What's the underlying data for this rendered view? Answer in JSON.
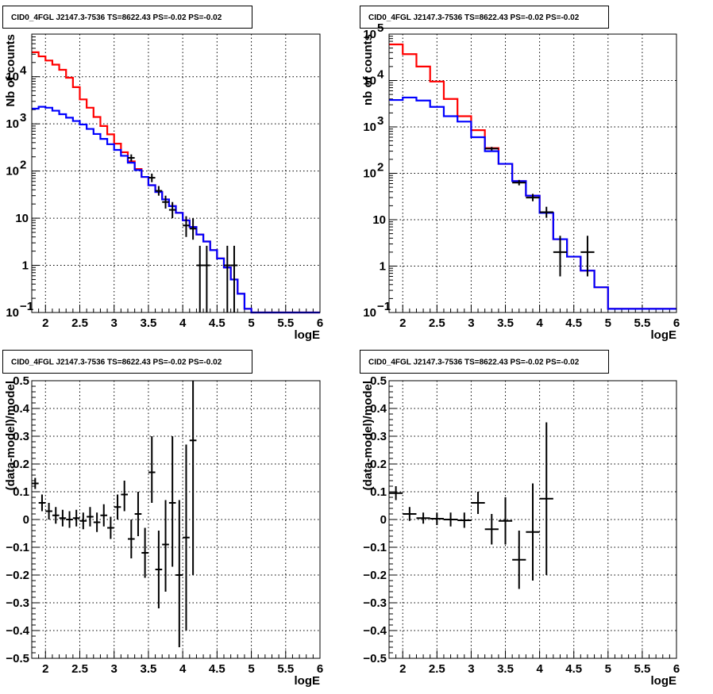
{
  "chart_data": [
    {
      "type": "line",
      "panel": "top-left",
      "title": "CID0_4FGL J2147.3-7536 TS=8622.43 PS=-0.02 PS=-0.02",
      "xlabel": "logE",
      "ylabel": "Nb of counts",
      "xlim": [
        1.8,
        6
      ],
      "ylim": [
        0.1,
        80000
      ],
      "yscale": "log",
      "grid": true,
      "x_ticks": [
        "2",
        "2.5",
        "3",
        "3.5",
        "4",
        "4.5",
        "5",
        "5.5",
        "6"
      ],
      "y_ticks": [
        {
          "v": 0.1,
          "base": "10",
          "exp": "−1"
        },
        {
          "v": 1,
          "label": "1"
        },
        {
          "v": 10,
          "label": "10"
        },
        {
          "v": 100,
          "base": "10",
          "exp": "2"
        },
        {
          "v": 1000,
          "base": "10",
          "exp": "3"
        },
        {
          "v": 10000,
          "base": "10",
          "exp": "4"
        }
      ],
      "series": [
        {
          "color": "#ff0000",
          "bin_edges": [
            1.8,
            1.9,
            2.0,
            2.1,
            2.2,
            2.3,
            2.4,
            2.5,
            2.6,
            2.7,
            2.8,
            2.9,
            3.0,
            3.1,
            3.2,
            3.3,
            3.4,
            3.5,
            3.6,
            3.7,
            3.8,
            3.9,
            4.0,
            4.1,
            4.2,
            4.3,
            4.4,
            4.5,
            4.6,
            4.7,
            4.8,
            4.9,
            5.0,
            6.0
          ],
          "values": [
            33000,
            27000,
            22000,
            18000,
            14000,
            9500,
            6000,
            3300,
            2200,
            1400,
            900,
            600,
            380,
            250,
            160,
            110,
            75,
            50,
            36,
            25,
            18,
            13,
            9,
            6.5,
            4.5,
            3.2,
            2.1,
            1.4,
            0.9,
            0.5,
            0.25,
            0.12,
            0.1
          ]
        },
        {
          "color": "#0000ff",
          "bin_edges": [
            1.8,
            1.9,
            2.0,
            2.1,
            2.2,
            2.3,
            2.4,
            2.5,
            2.6,
            2.7,
            2.8,
            2.9,
            3.0,
            3.1,
            3.2,
            3.3,
            3.4,
            3.5,
            3.6,
            3.7,
            3.8,
            3.9,
            4.0,
            4.1,
            4.2,
            4.3,
            4.4,
            4.5,
            4.6,
            4.7,
            4.8,
            4.9,
            5.0,
            6.0
          ],
          "values": [
            2100,
            2300,
            2200,
            1900,
            1600,
            1350,
            1150,
            970,
            780,
            610,
            480,
            370,
            280,
            210,
            150,
            105,
            75,
            50,
            36,
            25,
            18,
            13,
            9,
            6.5,
            4.5,
            3.2,
            2.1,
            1.4,
            0.9,
            0.5,
            0.25,
            0.12,
            0.1
          ]
        }
      ],
      "points": [
        {
          "x": 3.25,
          "y": 190,
          "ylo": 160,
          "yhi": 225,
          "xw": 0.05
        },
        {
          "x": 3.55,
          "y": 72,
          "ylo": 58,
          "yhi": 88,
          "xw": 0.05
        },
        {
          "x": 3.65,
          "y": 38,
          "ylo": 30,
          "yhi": 48,
          "xw": 0.05
        },
        {
          "x": 3.75,
          "y": 22,
          "ylo": 16,
          "yhi": 30,
          "xw": 0.05
        },
        {
          "x": 3.85,
          "y": 15,
          "ylo": 10,
          "yhi": 22,
          "xw": 0.05
        },
        {
          "x": 4.05,
          "y": 7,
          "ylo": 4,
          "yhi": 11,
          "xw": 0.05
        },
        {
          "x": 4.15,
          "y": 6,
          "ylo": 3.5,
          "yhi": 10,
          "xw": 0.05
        },
        {
          "x": 4.25,
          "y": 1,
          "ylo": 0.1,
          "yhi": 2.6,
          "xw": 0.05
        },
        {
          "x": 4.35,
          "y": 1,
          "ylo": 0.1,
          "yhi": 2.6,
          "xw": 0.05
        },
        {
          "x": 4.65,
          "y": 1,
          "ylo": 0.1,
          "yhi": 2.6,
          "xw": 0.05
        },
        {
          "x": 4.75,
          "y": 1,
          "ylo": 0.1,
          "yhi": 2.6,
          "xw": 0.05
        }
      ]
    },
    {
      "type": "line",
      "panel": "top-right",
      "title": "CID0_4FGL J2147.3-7536 TS=8622.43 PS=-0.02 PS=-0.02",
      "xlabel": "logE",
      "ylabel": "nb of counts",
      "xlim": [
        1.8,
        6
      ],
      "ylim": [
        0.1,
        100000
      ],
      "yscale": "log",
      "grid": true,
      "x_ticks": [
        "2",
        "2.5",
        "3",
        "3.5",
        "4",
        "4.5",
        "5",
        "5.5",
        "6"
      ],
      "y_ticks": [
        {
          "v": 0.1,
          "base": "10",
          "exp": "−1"
        },
        {
          "v": 1,
          "label": "1"
        },
        {
          "v": 10,
          "label": "10"
        },
        {
          "v": 100,
          "base": "10",
          "exp": "2"
        },
        {
          "v": 1000,
          "base": "10",
          "exp": "3"
        },
        {
          "v": 10000,
          "base": "10",
          "exp": "4"
        },
        {
          "v": 100000,
          "base": "10",
          "exp": "5"
        }
      ],
      "series": [
        {
          "color": "#ff0000",
          "bin_edges": [
            1.8,
            2.0,
            2.2,
            2.4,
            2.6,
            2.8,
            3.0,
            3.2,
            3.4,
            3.6,
            3.8,
            4.0,
            4.2,
            4.4,
            4.6,
            4.8,
            5.0,
            6.0
          ],
          "values": [
            60000,
            37000,
            20000,
            9500,
            4000,
            1700,
            850,
            350,
            160,
            68,
            33,
            14,
            3.8,
            1.6,
            0.8,
            0.35,
            0.12
          ]
        },
        {
          "color": "#0000ff",
          "bin_edges": [
            1.8,
            2.0,
            2.2,
            2.4,
            2.6,
            2.8,
            3.0,
            3.2,
            3.4,
            3.6,
            3.8,
            4.0,
            4.2,
            4.4,
            4.6,
            4.8,
            5.0,
            6.0
          ],
          "values": [
            3800,
            4300,
            3700,
            2700,
            1700,
            1300,
            600,
            300,
            160,
            68,
            33,
            14,
            3.8,
            1.6,
            0.8,
            0.35,
            0.12
          ]
        }
      ],
      "points": [
        {
          "x": 3.3,
          "y": 340,
          "ylo": 310,
          "yhi": 370,
          "xw": 0.1
        },
        {
          "x": 3.7,
          "y": 63,
          "ylo": 55,
          "yhi": 72,
          "xw": 0.1
        },
        {
          "x": 3.9,
          "y": 30,
          "ylo": 25,
          "yhi": 36,
          "xw": 0.1
        },
        {
          "x": 4.1,
          "y": 14.5,
          "ylo": 11,
          "yhi": 19,
          "xw": 0.1
        },
        {
          "x": 4.3,
          "y": 2,
          "ylo": 0.6,
          "yhi": 4.5,
          "xw": 0.1
        },
        {
          "x": 4.7,
          "y": 2,
          "ylo": 0.6,
          "yhi": 4.5,
          "xw": 0.1
        }
      ]
    },
    {
      "type": "scatter",
      "panel": "bottom-left",
      "title": "CID0_4FGL J2147.3-7536 TS=8622.43 PS=-0.02 PS=-0.02",
      "xlabel": "logE",
      "ylabel": "(data-model)/model",
      "xlim": [
        1.8,
        6
      ],
      "ylim": [
        -0.5,
        0.5
      ],
      "grid": true,
      "x_ticks": [
        "2",
        "2.5",
        "3",
        "3.5",
        "4",
        "4.5",
        "5",
        "5.5",
        "6"
      ],
      "y_ticks": [
        "−0.5",
        "−0.4",
        "−0.3",
        "−0.2",
        "−0.1",
        "0",
        "0.1",
        "0.2",
        "0.3",
        "0.4",
        "0.5"
      ],
      "points": [
        {
          "x": 1.85,
          "y": 0.13,
          "ylo": 0.11,
          "yhi": 0.15,
          "xw": 0.05
        },
        {
          "x": 1.95,
          "y": 0.06,
          "ylo": 0.03,
          "yhi": 0.09,
          "xw": 0.05
        },
        {
          "x": 2.05,
          "y": 0.03,
          "ylo": 0.0,
          "yhi": 0.06,
          "xw": 0.05
        },
        {
          "x": 2.15,
          "y": 0.015,
          "ylo": -0.015,
          "yhi": 0.045,
          "xw": 0.05
        },
        {
          "x": 2.25,
          "y": 0.005,
          "ylo": -0.025,
          "yhi": 0.035,
          "xw": 0.05
        },
        {
          "x": 2.35,
          "y": 0.0,
          "ylo": -0.03,
          "yhi": 0.03,
          "xw": 0.05
        },
        {
          "x": 2.45,
          "y": 0.005,
          "ylo": -0.025,
          "yhi": 0.035,
          "xw": 0.05
        },
        {
          "x": 2.55,
          "y": -0.005,
          "ylo": -0.035,
          "yhi": 0.025,
          "xw": 0.05
        },
        {
          "x": 2.65,
          "y": 0.01,
          "ylo": -0.025,
          "yhi": 0.045,
          "xw": 0.05
        },
        {
          "x": 2.75,
          "y": -0.01,
          "ylo": -0.045,
          "yhi": 0.025,
          "xw": 0.05
        },
        {
          "x": 2.85,
          "y": 0.015,
          "ylo": -0.025,
          "yhi": 0.055,
          "xw": 0.05
        },
        {
          "x": 2.95,
          "y": -0.03,
          "ylo": -0.07,
          "yhi": 0.01,
          "xw": 0.05
        },
        {
          "x": 3.05,
          "y": 0.045,
          "ylo": 0.0,
          "yhi": 0.09,
          "xw": 0.05
        },
        {
          "x": 3.15,
          "y": 0.09,
          "ylo": 0.03,
          "yhi": 0.14,
          "xw": 0.05
        },
        {
          "x": 3.25,
          "y": -0.07,
          "ylo": -0.14,
          "yhi": 0.0,
          "xw": 0.05
        },
        {
          "x": 3.35,
          "y": 0.02,
          "ylo": -0.06,
          "yhi": 0.1,
          "xw": 0.05
        },
        {
          "x": 3.45,
          "y": -0.12,
          "ylo": -0.21,
          "yhi": -0.03,
          "xw": 0.05
        },
        {
          "x": 3.55,
          "y": 0.17,
          "ylo": 0.06,
          "yhi": 0.3,
          "xw": 0.05
        },
        {
          "x": 3.65,
          "y": -0.18,
          "ylo": -0.32,
          "yhi": -0.04,
          "xw": 0.05
        },
        {
          "x": 3.75,
          "y": -0.09,
          "ylo": -0.26,
          "yhi": 0.07,
          "xw": 0.05
        },
        {
          "x": 3.85,
          "y": 0.06,
          "ylo": -0.17,
          "yhi": 0.3,
          "xw": 0.05
        },
        {
          "x": 3.95,
          "y": -0.2,
          "ylo": -0.46,
          "yhi": 0.07,
          "xw": 0.05
        },
        {
          "x": 4.05,
          "y": -0.065,
          "ylo": -0.4,
          "yhi": 0.27,
          "xw": 0.05
        },
        {
          "x": 4.15,
          "y": 0.285,
          "ylo": -0.2,
          "yhi": 0.5,
          "xw": 0.05
        }
      ]
    },
    {
      "type": "scatter",
      "panel": "bottom-right",
      "title": "CID0_4FGL J2147.3-7536 TS=8622.43 PS=-0.02 PS=-0.02",
      "xlabel": "logE",
      "ylabel": "(data-model)/model",
      "xlim": [
        1.8,
        6
      ],
      "ylim": [
        -0.5,
        0.5
      ],
      "grid": true,
      "x_ticks": [
        "2",
        "2.5",
        "3",
        "3.5",
        "4",
        "4.5",
        "5",
        "5.5",
        "6"
      ],
      "y_ticks": [
        "−0.5",
        "−0.4",
        "−0.3",
        "−0.2",
        "−0.1",
        "0",
        "0.1",
        "0.2",
        "0.3",
        "0.4",
        "0.5"
      ],
      "points": [
        {
          "x": 1.9,
          "y": 0.095,
          "ylo": 0.07,
          "yhi": 0.12,
          "xw": 0.1
        },
        {
          "x": 2.1,
          "y": 0.02,
          "ylo": -0.005,
          "yhi": 0.045,
          "xw": 0.1
        },
        {
          "x": 2.3,
          "y": 0.005,
          "ylo": -0.015,
          "yhi": 0.025,
          "xw": 0.1
        },
        {
          "x": 2.5,
          "y": 0.003,
          "ylo": -0.02,
          "yhi": 0.025,
          "xw": 0.1
        },
        {
          "x": 2.7,
          "y": 0.0,
          "ylo": -0.025,
          "yhi": 0.025,
          "xw": 0.1
        },
        {
          "x": 2.9,
          "y": -0.003,
          "ylo": -0.03,
          "yhi": 0.025,
          "xw": 0.1
        },
        {
          "x": 3.1,
          "y": 0.06,
          "ylo": 0.02,
          "yhi": 0.1,
          "xw": 0.1
        },
        {
          "x": 3.3,
          "y": -0.035,
          "ylo": -0.09,
          "yhi": 0.02,
          "xw": 0.1
        },
        {
          "x": 3.5,
          "y": -0.005,
          "ylo": -0.09,
          "yhi": 0.08,
          "xw": 0.1
        },
        {
          "x": 3.7,
          "y": -0.145,
          "ylo": -0.25,
          "yhi": -0.04,
          "xw": 0.1
        },
        {
          "x": 3.9,
          "y": -0.045,
          "ylo": -0.22,
          "yhi": 0.13,
          "xw": 0.1
        },
        {
          "x": 4.1,
          "y": 0.075,
          "ylo": -0.2,
          "yhi": 0.35,
          "xw": 0.1
        }
      ]
    }
  ]
}
